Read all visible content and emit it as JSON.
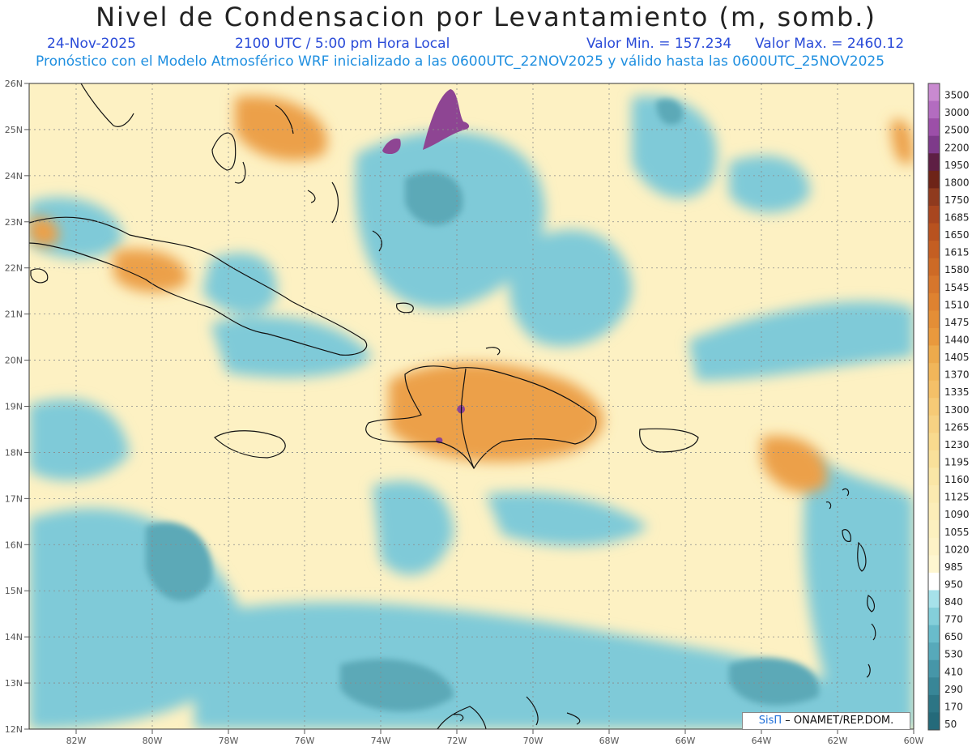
{
  "header": {
    "title": "Nivel de Condensacion por Levantamiento (m, somb.)",
    "date": "24-Nov-2025",
    "time": "2100 UTC / 5:00 pm Hora Local",
    "min_label": "Valor Min. = 157.234",
    "max_label": "Valor Max. = 2460.12",
    "model_line": "Pronóstico con el Modelo Atmosférico WRF inicializado a las 0600UTC_22NOV2025 y válido hasta las  0600UTC_25NOV2025"
  },
  "axes": {
    "lat_labels": [
      "26N",
      "25N",
      "24N",
      "23N",
      "22N",
      "21N",
      "20N",
      "19N",
      "18N",
      "17N",
      "16N",
      "15N",
      "14N",
      "13N",
      "12N"
    ],
    "lon_labels": [
      "82W",
      "80W",
      "78W",
      "76W",
      "74W",
      "72W",
      "70W",
      "68W",
      "66W",
      "64W",
      "62W",
      "60W"
    ]
  },
  "colorbar": {
    "levels": [
      "3500",
      "3000",
      "2500",
      "2200",
      "1950",
      "1800",
      "1750",
      "1685",
      "1650",
      "1615",
      "1580",
      "1545",
      "1510",
      "1475",
      "1440",
      "1405",
      "1370",
      "1335",
      "1300",
      "1265",
      "1230",
      "1195",
      "1160",
      "1125",
      "1090",
      "1055",
      "1020",
      "985",
      "950",
      "840",
      "770",
      "650",
      "530",
      "410",
      "290",
      "170",
      "50"
    ],
    "colors": [
      "#c98ad0",
      "#b36cc0",
      "#9c4fa8",
      "#7e3a8a",
      "#5e1f44",
      "#6e2418",
      "#8f3a1e",
      "#a8461f",
      "#b8521f",
      "#c45e22",
      "#cd6a26",
      "#d6762c",
      "#de8230",
      "#e48e36",
      "#e9993d",
      "#edaa4c",
      "#f1b65a",
      "#f4c068",
      "#f6ca76",
      "#f7d283",
      "#f8da8e",
      "#f9e09a",
      "#fae6a6",
      "#fbeab0",
      "#fcedb8",
      "#fcf0bf",
      "#fdf2c6",
      "#fef6d0",
      "#ffffff",
      "#a6e2ea",
      "#84cfda",
      "#69bccb",
      "#57a9ba",
      "#4696a8",
      "#388697",
      "#2c7585",
      "#246a7a"
    ],
    "hot_color": "#eca04a",
    "warm_color": "#fbe7ad",
    "cool_color": "#7fcad8",
    "deep_color": "#5ba9b7",
    "ocean_color": "#fdf1c3",
    "purple_color": "#8e4593"
  },
  "credit": {
    "brand": "SisΠ",
    "org": " –  ONAMET/REP.DOM."
  }
}
